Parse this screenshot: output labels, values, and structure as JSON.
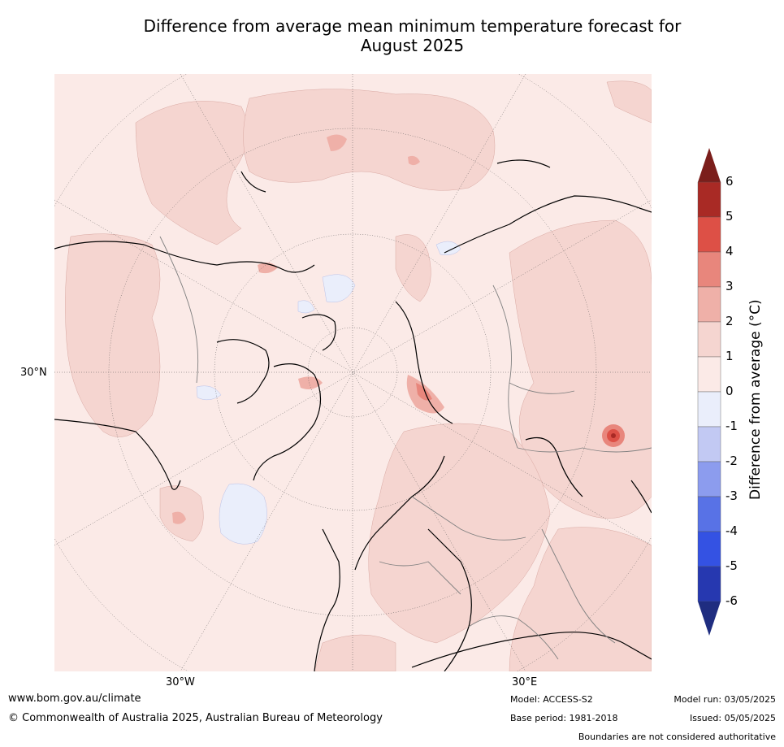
{
  "title_line1": "Difference from average mean minimum temperature forecast for",
  "title_line2": "August 2025",
  "lat_label": "30°N",
  "lon_label_w": "30°W",
  "lon_label_e": "30°E",
  "colorbar": {
    "label": "Difference from average ($^\\circ$C)",
    "label_display": "Difference from average (°C)",
    "ticks": [
      "6",
      "5",
      "4",
      "3",
      "2",
      "1",
      "0",
      "-1",
      "-2",
      "-3",
      "-4",
      "-5",
      "-6"
    ],
    "colors": [
      "#a92a25",
      "#dd5046",
      "#e8867c",
      "#efb0a8",
      "#f5d5d0",
      "#fbeae7",
      "#eaeefb",
      "#c2c9f3",
      "#8c9cee",
      "#5872e6",
      "#3452e3",
      "#2638b0"
    ],
    "over_color": "#7b1e1b",
    "under_color": "#1f2d80"
  },
  "colors": {
    "land_outline": "#000000",
    "border": "#808080",
    "base_fill": "#fbeae7",
    "warm_fill": "#f5d5d0",
    "warmer_fill": "#efb0a8",
    "hot_fill": "#e8867c",
    "cool_fill": "#eaeefb"
  },
  "footer": {
    "website": "www.bom.gov.au/climate",
    "copyright": "© Commonwealth of Australia 2025, Australian Bureau of Meteorology",
    "model": "Model: ACCESS-S2",
    "base_period": "Base period: 1981-2018",
    "model_run": "Model run: 03/05/2025",
    "issued": "Issued: 05/05/2025",
    "disclaimer": "Boundaries are not considered authoritative"
  }
}
